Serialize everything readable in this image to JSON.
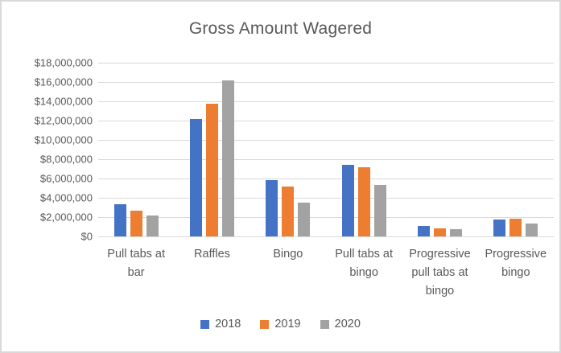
{
  "chart_data": {
    "type": "bar",
    "title": "Gross Amount Wagered",
    "categories": [
      "Pull tabs at bar",
      "Raffles",
      "Bingo",
      "Pull tabs at bingo",
      "Progressive pull tabs at bingo",
      "Progressive bingo"
    ],
    "series": [
      {
        "name": "2018",
        "color": "#4472C4",
        "pattern": "solid",
        "values": [
          3300000,
          12200000,
          5850000,
          7450000,
          1050000,
          1750000
        ]
      },
      {
        "name": "2019",
        "color": "#ED7D31",
        "pattern": "solid",
        "values": [
          2650000,
          13750000,
          5200000,
          7200000,
          850000,
          1800000
        ]
      },
      {
        "name": "2020",
        "color": "#A5A5A5",
        "pattern": "speckled",
        "values": [
          2200000,
          16200000,
          3500000,
          5300000,
          750000,
          1300000
        ]
      }
    ],
    "y_axis": {
      "min": 0,
      "max": 18000000,
      "step": 2000000,
      "tick_labels": [
        "$0",
        "$2,000,000",
        "$4,000,000",
        "$6,000,000",
        "$8,000,000",
        "$10,000,000",
        "$12,000,000",
        "$14,000,000",
        "$16,000,000",
        "$18,000,000"
      ]
    },
    "legend_position": "bottom",
    "grid": true,
    "colors": {
      "text": "#595959",
      "gridline": "#D9D9D9",
      "background": "#FFFFFF",
      "frame_border": "#D9D9D9"
    }
  }
}
